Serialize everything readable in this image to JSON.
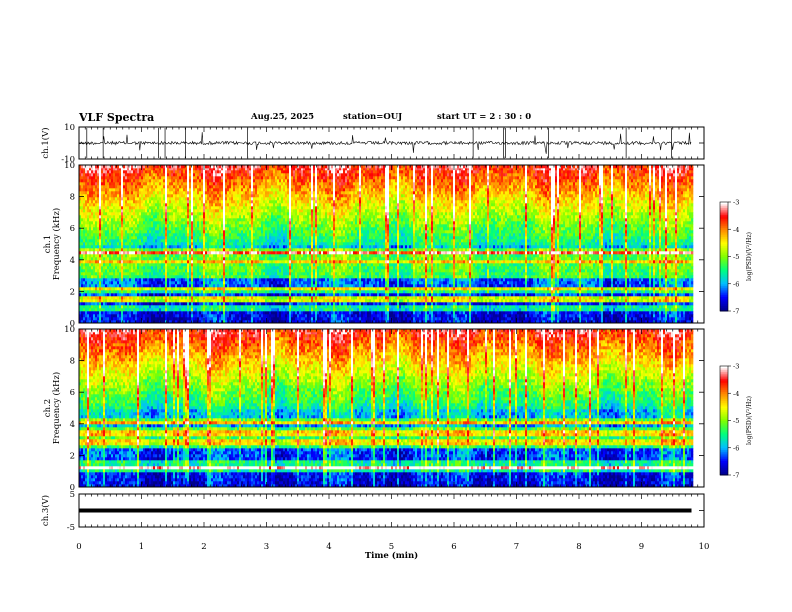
{
  "header": {
    "title": "VLF Spectra",
    "date": "Aug.25, 2025",
    "station": "station=OUJ",
    "start": "start UT =  2 : 30 : 0"
  },
  "chart_data": [
    {
      "type": "line",
      "panel": "ch1-waveform",
      "ylabel": "ch.1(V)",
      "ylim": [
        -10,
        10
      ],
      "yticks": [
        "10",
        "-10"
      ],
      "xlim": [
        0,
        10
      ],
      "series": [
        {
          "x": [
            0,
            9.8
          ],
          "y": [
            0,
            0
          ]
        }
      ]
    },
    {
      "type": "heatmap",
      "panel": "ch1-spectrogram",
      "ylabel": "Frequency (kHz)",
      "channel_label": "ch.1",
      "ylim": [
        0,
        10
      ],
      "yticks": [
        "0",
        "2",
        "4",
        "6",
        "8",
        "10"
      ],
      "xlim": [
        0,
        10
      ],
      "data_xmax": 9.8,
      "colorbar": {
        "label": "log(PSD)(V²/Hz)",
        "min": -7,
        "max": -3,
        "ticks": [
          "-3",
          "-4",
          "-5",
          "-6",
          "-7"
        ]
      },
      "colormap": [
        "#00008b",
        "#0000ff",
        "#00bfff",
        "#00ff7f",
        "#7fff00",
        "#ffff00",
        "#ff8c00",
        "#ff0000",
        "#ffffff"
      ]
    },
    {
      "type": "heatmap",
      "panel": "ch2-spectrogram",
      "ylabel": "Frequency (kHz)",
      "channel_label": "ch.2",
      "ylim": [
        0,
        10
      ],
      "yticks": [
        "0",
        "2",
        "4",
        "6",
        "8",
        "10"
      ],
      "xlim": [
        0,
        10
      ],
      "data_xmax": 9.8,
      "colorbar": {
        "label": "log(PSD)(V²/Hz)",
        "min": -7,
        "max": -3,
        "ticks": [
          "-3",
          "-4",
          "-5",
          "-6",
          "-7"
        ]
      },
      "colormap": [
        "#00008b",
        "#0000ff",
        "#00bfff",
        "#00ff7f",
        "#7fff00",
        "#ffff00",
        "#ff8c00",
        "#ff0000",
        "#ffffff"
      ]
    },
    {
      "type": "line",
      "panel": "ch3-waveform",
      "ylabel": "ch.3(V)",
      "ylim": [
        -5,
        5
      ],
      "yticks": [
        "5",
        "-5"
      ],
      "xlim": [
        0,
        10
      ],
      "series": [
        {
          "x": [
            0,
            9.8
          ],
          "y": [
            0,
            0
          ]
        }
      ]
    }
  ],
  "xaxis": {
    "label": "Time (min)",
    "ticks": [
      "0",
      "1",
      "2",
      "3",
      "4",
      "5",
      "6",
      "7",
      "8",
      "9",
      "10"
    ]
  }
}
